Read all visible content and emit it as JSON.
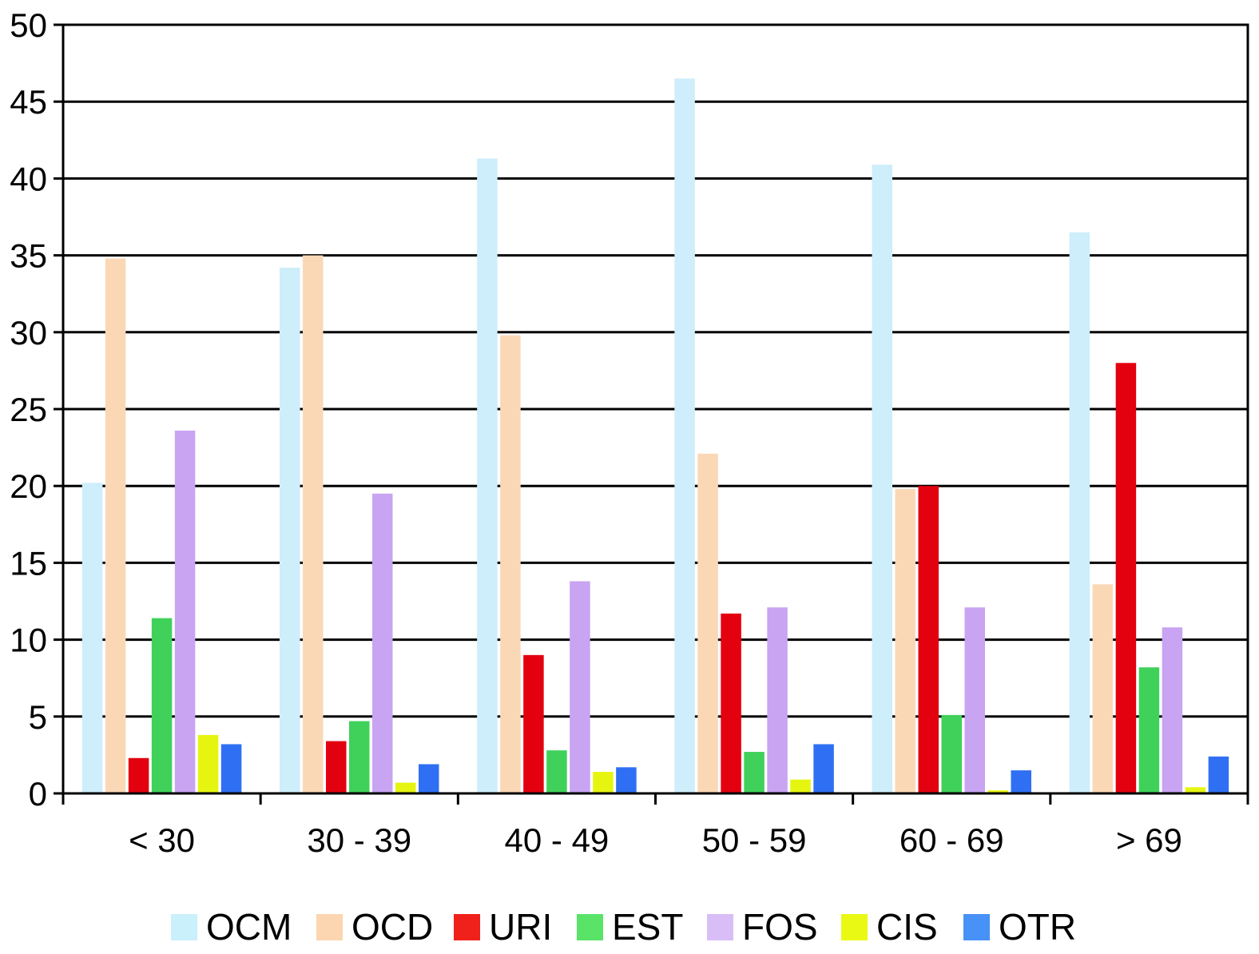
{
  "chart_data": {
    "type": "bar",
    "title": "",
    "xlabel": "",
    "ylabel": "",
    "ylim": [
      0,
      50
    ],
    "yticks": [
      "0",
      "5",
      "10",
      "15",
      "20",
      "25",
      "30",
      "35",
      "40",
      "45",
      "50"
    ],
    "grid": true,
    "legend_position": "bottom",
    "categories": [
      "< 30",
      "30 - 39",
      "40 - 49",
      "50 - 59",
      "60 - 69",
      "> 69"
    ],
    "series": [
      {
        "name": "OCM",
        "color": "#cdeefa",
        "legend_color": "#c9f0fb",
        "values": [
          20.2,
          34.2,
          41.3,
          46.5,
          40.9,
          36.5
        ]
      },
      {
        "name": "OCD",
        "color": "#fad8b6",
        "legend_color": "#fbd6b1",
        "values": [
          34.8,
          35.0,
          29.8,
          22.1,
          19.8,
          13.6
        ]
      },
      {
        "name": "URI",
        "color": "#e3000f",
        "legend_color": "#f0211a",
        "values": [
          2.3,
          3.4,
          9.0,
          11.7,
          20.0,
          28.0
        ]
      },
      {
        "name": "EST",
        "color": "#3fd15a",
        "legend_color": "#59e468",
        "values": [
          11.4,
          4.7,
          2.8,
          2.7,
          5.1,
          8.2
        ]
      },
      {
        "name": "FOS",
        "color": "#c8a4f2",
        "legend_color": "#d9bdf7",
        "values": [
          23.6,
          19.5,
          13.8,
          12.1,
          12.1,
          10.8
        ]
      },
      {
        "name": "CIS",
        "color": "#e6f50f",
        "legend_color": "#eaf914",
        "values": [
          3.8,
          0.7,
          1.4,
          0.9,
          0.2,
          0.4
        ]
      },
      {
        "name": "OTR",
        "color": "#2f6ff3",
        "legend_color": "#4791f7",
        "values": [
          3.2,
          1.9,
          1.7,
          3.2,
          1.5,
          2.4
        ]
      }
    ]
  }
}
